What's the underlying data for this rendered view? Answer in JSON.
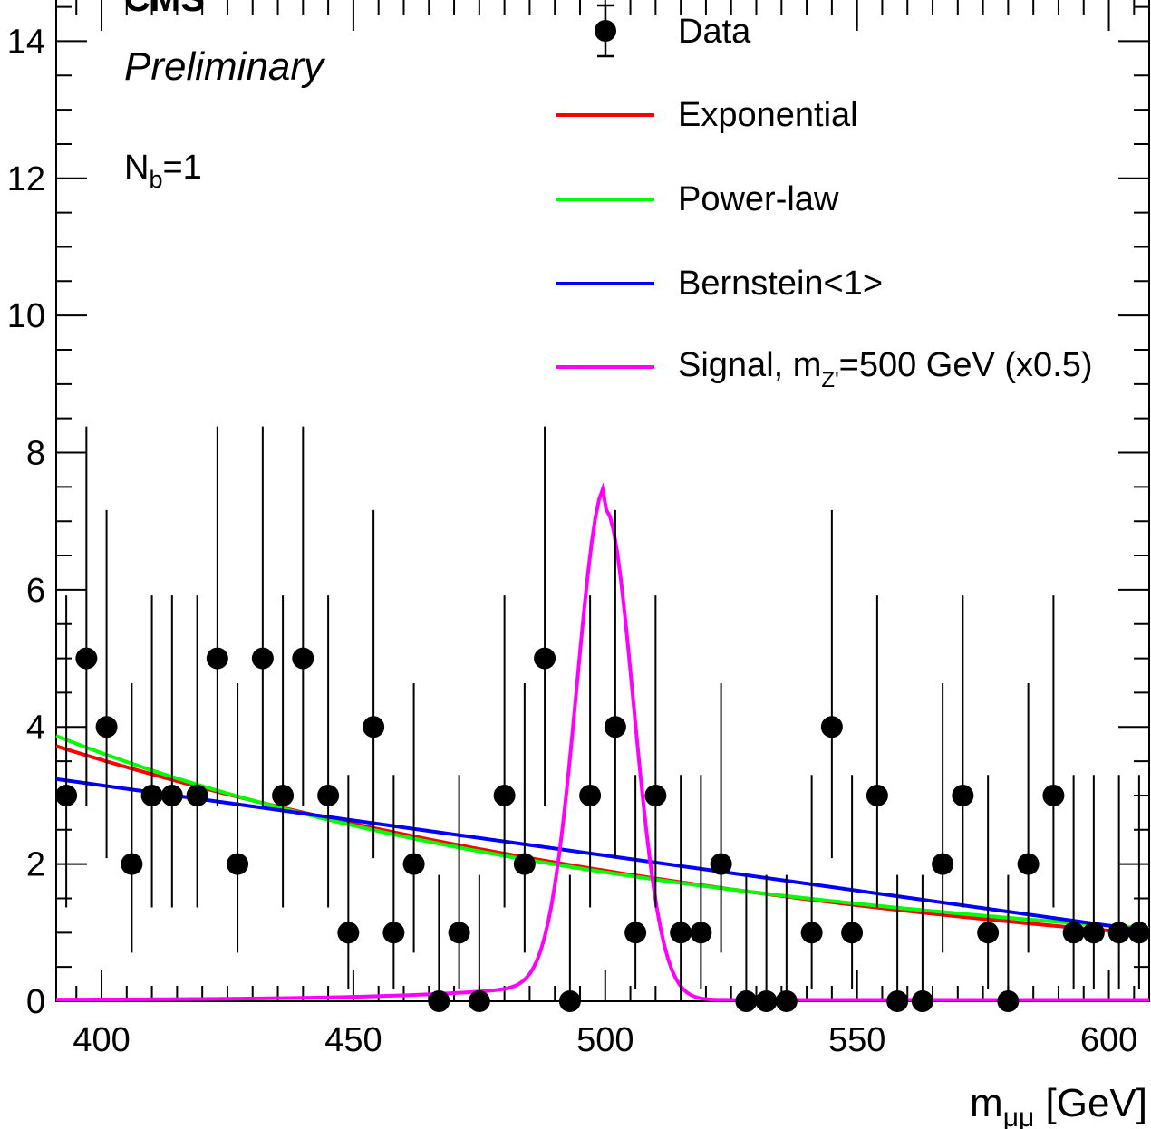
{
  "chart_data": {
    "type": "scatter",
    "experiment": "CMS",
    "status": "Preliminary",
    "category": {
      "prefix": "N",
      "sub": "b",
      "suffix": "=1"
    },
    "xlabel": {
      "main": "m",
      "sub": "μμ",
      "unit": " [GeV]"
    },
    "ylabel": "",
    "xlim": [
      391,
      608
    ],
    "ylim": [
      0,
      14.6
    ],
    "x_ticks": [
      400,
      450,
      500,
      550,
      600
    ],
    "y_ticks": [
      0,
      2,
      4,
      6,
      8,
      10,
      12,
      14
    ],
    "legend_placement": "top-right",
    "legend": {
      "data": "Data",
      "exponential": "Exponential",
      "powerlaw": "Power-law",
      "bernstein": "Bernstein<1>",
      "signal_prefix": "Signal, m",
      "signal_sub": "Z'",
      "signal_suffix": "=500 GeV (x0.5)"
    },
    "colors": {
      "data": "#000000",
      "exponential": "#ff0000",
      "powerlaw": "#00ff00",
      "bernstein": "#0000ff",
      "signal": "#ff00ff"
    },
    "series_data": {
      "name": "Data",
      "x": [
        393,
        397,
        401,
        406,
        410,
        414,
        419,
        423,
        427,
        432,
        436,
        440,
        445,
        449,
        454,
        458,
        462,
        467,
        471,
        475,
        480,
        484,
        488,
        493,
        497,
        502,
        506,
        510,
        515,
        519,
        523,
        528,
        532,
        536,
        541,
        545,
        549,
        554,
        558,
        563,
        567,
        571,
        576,
        580,
        584,
        589,
        593,
        597,
        602,
        606
      ],
      "y": [
        3,
        5,
        4,
        2,
        3,
        3,
        3,
        5,
        2,
        5,
        3,
        5,
        3,
        1,
        4,
        1,
        2,
        0,
        1,
        0,
        3,
        2,
        5,
        0,
        3,
        4,
        1,
        3,
        1,
        1,
        2,
        0,
        0,
        0,
        1,
        4,
        1,
        3,
        0,
        0,
        2,
        3,
        1,
        0,
        2,
        3,
        1,
        1,
        1,
        1
      ]
    },
    "fits": {
      "exponential": {
        "x": [
          391,
          608
        ],
        "y": [
          3.72,
          0.98
        ]
      },
      "powerlaw": {
        "x": [
          391,
          608
        ],
        "y": [
          3.87,
          1.06
        ]
      },
      "bernstein": {
        "x": [
          391,
          608
        ],
        "y": [
          3.24,
          1.02
        ]
      }
    },
    "signal_model": {
      "mass": 500,
      "peak": 7.15,
      "sigma": 5.6,
      "tail_amplitude": 0.055,
      "tail_scale": 25
    }
  }
}
